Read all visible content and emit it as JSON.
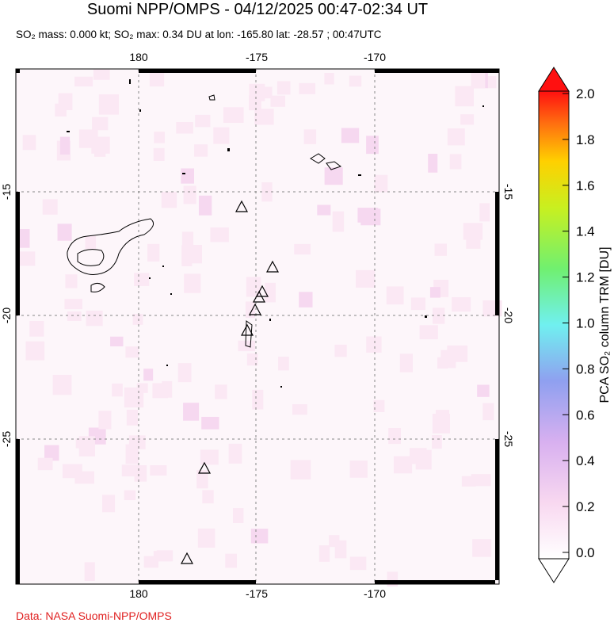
{
  "header": {
    "title": "Suomi NPP/OMPS - 04/12/2025 00:47-02:34 UT",
    "subtitle": "SO₂ mass: 0.000 kt; SO₂ max: 0.34 DU at lon: -165.80 lat: -28.57 ; 00:47UTC"
  },
  "map": {
    "lon_labels": [
      "180",
      "-175",
      "-170"
    ],
    "lat_labels": [
      "-15",
      "-20",
      "-25"
    ]
  },
  "colorbar": {
    "ticks": [
      "0.0",
      "0.2",
      "0.4",
      "0.6",
      "0.8",
      "1.0",
      "1.2",
      "1.4",
      "1.6",
      "1.8",
      "2.0"
    ],
    "label": "PCA SO₂ column TRM [DU]"
  },
  "footer": {
    "source": "Data: NASA Suomi-NPP/OMPS"
  }
}
